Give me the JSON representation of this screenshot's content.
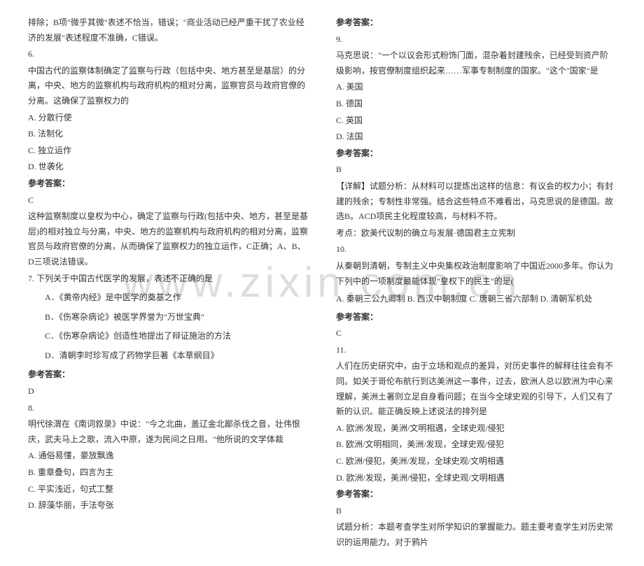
{
  "watermark": "www.zixin.com.cn",
  "left": {
    "intro": "排除；B项\"微乎其微\"表述不恰当，错误；\"商业活动已经严重干扰了农业经济的发展\"表述程度不准确，C错误。",
    "q6": {
      "num": "6.",
      "text": "中国古代的监察体制确定了监察与行政（包括中央、地方甚至是基层）的分离，中央、地方的监察机构与政府机构的相对分离，监察官员与政府官僚的分离。这确保了监察权力的",
      "opts": [
        "A. 分散行使",
        "B. 法制化",
        "C. 独立运作",
        "D. 世袭化"
      ],
      "ansLabel": "参考答案：",
      "ans": "C",
      "exp": "这种监察制度以皇权为中心，确定了监察与行政(包括中央、地方，甚至是基层)的相对独立与分离，中央、地方的监察机构与政府机构的相对分离，监察官员与政府官僚的分离，从而确保了监察权力的独立运作，C正确；A、B、D三项说法错误。"
    },
    "q7": {
      "num": "7. 下列关于中国古代医学的发展，表述不正确的是",
      "opts": [
        "A．《黄帝内经》是中医学的奠基之作",
        "B．《伤寒杂病论》被医学界誉为\"万世宝典\"",
        "C．《伤寒杂病论》创造性地提出了辩证施治的方法",
        "D．清朝李时珍写成了药物学巨著《本草纲目》"
      ],
      "ansLabel": "参考答案：",
      "ans": "D"
    },
    "q8": {
      "num": "8.",
      "text": "明代徐渭在《南词叙录》中说：\"今之北曲，盖辽金北鄙杀伐之音，壮伟恨庆，武夫马上之歌，流入中原，遂为民间之日用。\"他所说的文学体裁",
      "opts": [
        "A. 通俗易懂，豪放飘逸",
        "B. 重章叠句，四言为主",
        "C. 平实浅近，句式工整",
        "D. 辞藻华丽，手法夸张"
      ]
    }
  },
  "right": {
    "ansLabel0": "参考答案：",
    "q9": {
      "num": "9.",
      "text": "马克思说：\"一个以议会形式粉饰门面，混杂着封建残余，已经受到资产阶级影响，按官僚制度组织起来……军事专制制度的国家。\"这个\"国家\"是",
      "opts": [
        "A. 美国",
        "B. 德国",
        "C. 英国",
        "D. 法国"
      ],
      "ansLabel": "参考答案：",
      "ans": "B",
      "exp1": "【详解】试题分析：从材料可以提炼出这样的信息：有议会的权力小；有封建的残余；专制性非常强。结合这些特点不难看出，马克思说的是德国。故选B。ACD项民主化程度较高，与材料不符。",
      "exp2": "考点：欧美代议制的确立与发展·德国君主立宪制"
    },
    "q10": {
      "num": "10.",
      "text": "从秦朝到清朝，专制主义中央集权政治制度影响了中国近2000多年。你认为下列中的一项制度最能体现\"皇权下的民主\"的是(",
      "optline": "A. 秦朝三公九卿制    B. 西汉中朝制度    C. 唐朝三省六部制       D. 清朝军机处",
      "ansLabel": "参考答案：",
      "ans": "C"
    },
    "q11": {
      "num": "11.",
      "text": "人们在历史研究中，由于立场和观点的差异，对历史事件的解释往往会有不同。如关于哥伦布航行到达美洲这一事件，过去，欧洲人总以欧洲为中心来理解，美洲土著则立足自身看问题；在当今全球史观的引导下，人们又有了新的认识。能正确反映上述说法的排列是",
      "opts": [
        "A. 欧洲/发现，美洲/文明相遇，全球史观/侵犯",
        "B. 欧洲/文明相同，美洲/发现，全球史观/侵犯",
        "C. 欧洲/侵犯，美洲/发现，全球史观/文明相遇",
        "D. 欧洲/发现，美洲/侵犯，全球史观/文明相遇"
      ],
      "ansLabel": "参考答案：",
      "ans": "B",
      "exp": "试题分析：本题考查学生对所学知识的掌握能力。题主要考查学生对历史常识的运用能力。对于鸦片"
    }
  }
}
